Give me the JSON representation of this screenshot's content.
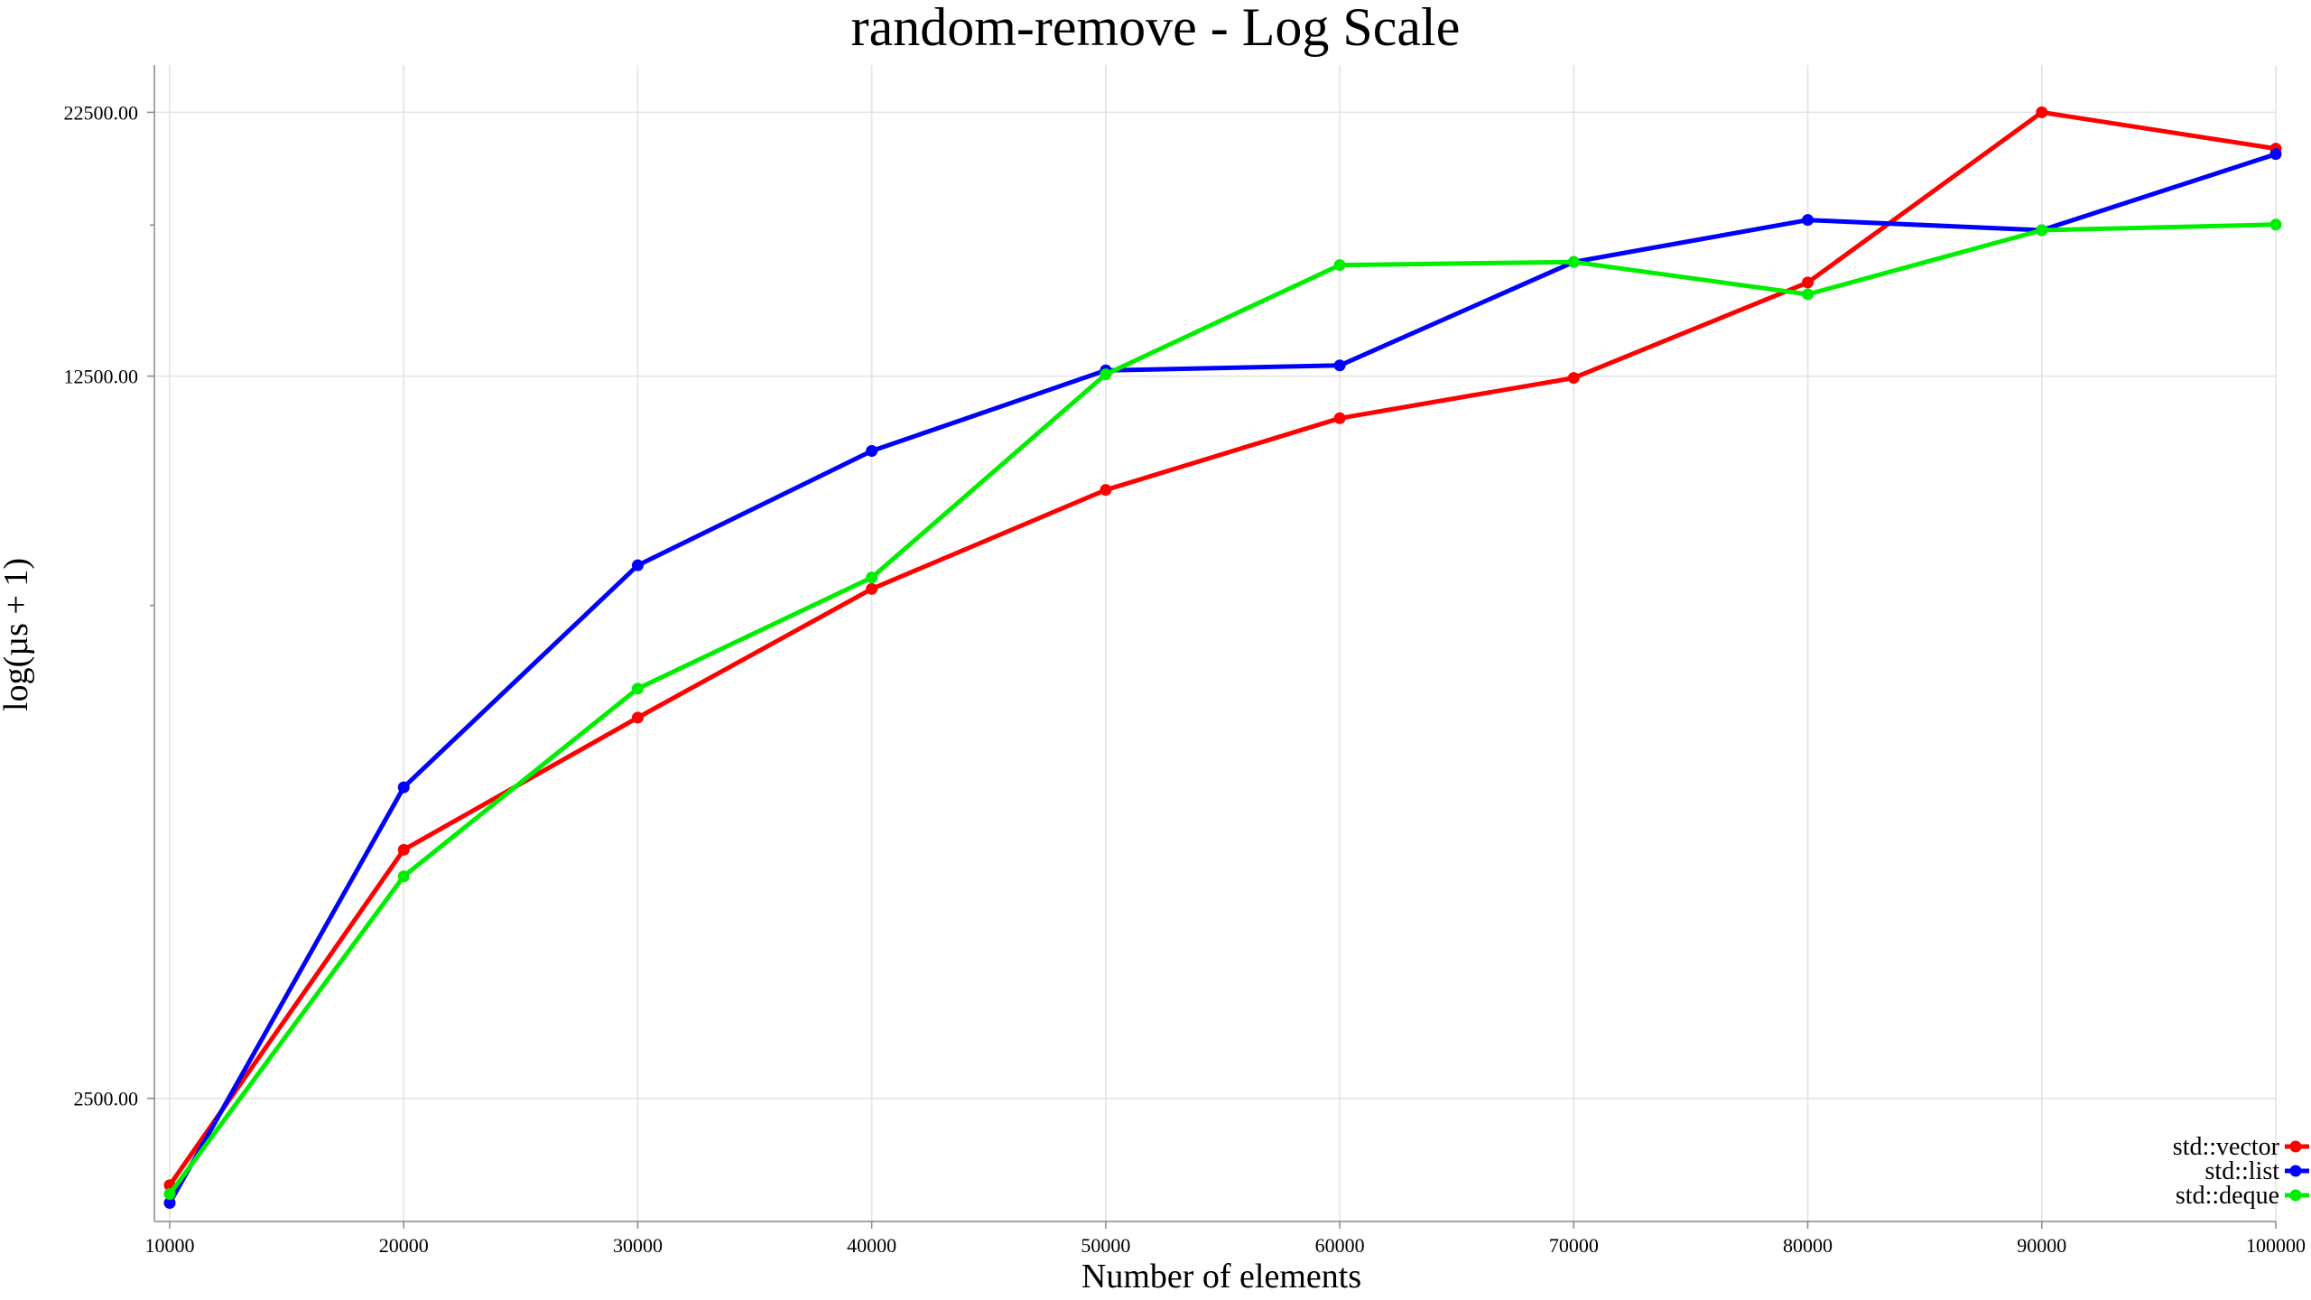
{
  "chart_data": {
    "type": "line",
    "title": "random-remove - Log Scale",
    "xlabel": "Number of elements",
    "ylabel": "log(µs + 1)",
    "y_scale": "log",
    "grid": true,
    "legend_position": "bottom-right",
    "x": [
      10000,
      20000,
      30000,
      40000,
      50000,
      60000,
      70000,
      80000,
      90000,
      100000
    ],
    "x_ticks": [
      "10000",
      "20000",
      "30000",
      "40000",
      "50000",
      "60000",
      "70000",
      "80000",
      "90000",
      "100000"
    ],
    "y_ticks": [
      {
        "value": 2500,
        "label": "2500.00"
      },
      {
        "value": 12500,
        "label": "12500.00"
      },
      {
        "value": 22500,
        "label": "22500.00"
      }
    ],
    "y_minor_ticks": [
      7500,
      17500
    ],
    "ylim": [
      1900,
      25000
    ],
    "series": [
      {
        "name": "std::vector",
        "color": "#ff0000",
        "values": [
          2060,
          4350,
          5840,
          7780,
          9700,
          11380,
          12450,
          15400,
          22500,
          20750
        ]
      },
      {
        "name": "std::list",
        "color": "#0000ff",
        "values": [
          1980,
          5000,
          8200,
          10580,
          12660,
          12800,
          16120,
          17700,
          17300,
          20500
        ]
      },
      {
        "name": "std::deque",
        "color": "#00ee00",
        "values": [
          2020,
          4100,
          6230,
          7980,
          12550,
          16010,
          16120,
          15000,
          17300,
          17520
        ]
      }
    ]
  }
}
